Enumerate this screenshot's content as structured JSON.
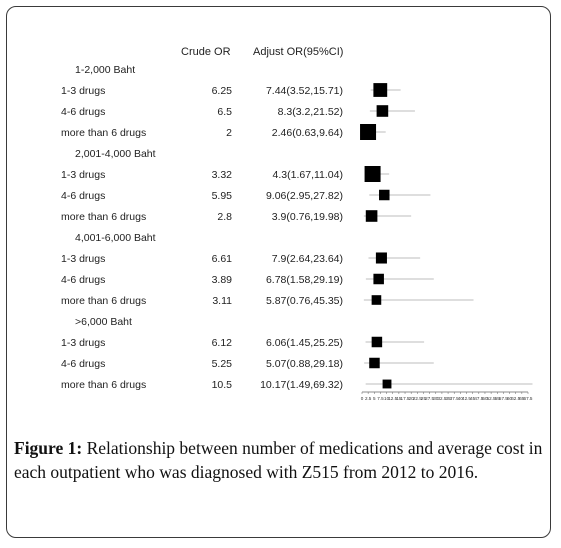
{
  "chart_data": {
    "type": "forest",
    "columns": {
      "crude": "Crude OR",
      "adjusted": "Adjust OR(95%CI)"
    },
    "groups": [
      {
        "label": "1-2,000 Baht",
        "rows": [
          {
            "label": "1-3 drugs",
            "crude": "6.25",
            "adjusted": "7.44(3.52,15.71)",
            "or": 7.44,
            "lo": 3.52,
            "hi": 15.71,
            "weight": 0.8
          },
          {
            "label": "4-6 drugs",
            "crude": "6.5",
            "adjusted": "8.3(3.2,21.52)",
            "or": 8.3,
            "lo": 3.2,
            "hi": 21.52,
            "weight": 0.6
          },
          {
            "label": "more than 6 drugs",
            "crude": "2",
            "adjusted": "2.46(0.63,9.64)",
            "or": 2.46,
            "lo": 0.63,
            "hi": 9.64,
            "weight": 1.0
          }
        ]
      },
      {
        "label": "2,001-4,000 Baht",
        "rows": [
          {
            "label": "1-3 drugs",
            "crude": "3.32",
            "adjusted": "4.3(1.67,11.04)",
            "or": 4.3,
            "lo": 1.67,
            "hi": 11.04,
            "weight": 1.0
          },
          {
            "label": "4-6 drugs",
            "crude": "5.95",
            "adjusted": "9.06(2.95,27.82)",
            "or": 9.06,
            "lo": 2.95,
            "hi": 27.82,
            "weight": 0.5
          },
          {
            "label": "more than 6 drugs",
            "crude": "2.8",
            "adjusted": "3.9(0.76,19.98)",
            "or": 3.9,
            "lo": 0.76,
            "hi": 19.98,
            "weight": 0.6
          }
        ]
      },
      {
        "label": "4,001-6,000 Baht",
        "rows": [
          {
            "label": "1-3 drugs",
            "crude": "6.61",
            "adjusted": "7.9(2.64,23.64)",
            "or": 7.9,
            "lo": 2.64,
            "hi": 23.64,
            "weight": 0.55
          },
          {
            "label": "4-6 drugs",
            "crude": "3.89",
            "adjusted": "6.78(1.58,29.19)",
            "or": 6.78,
            "lo": 1.58,
            "hi": 29.19,
            "weight": 0.5
          },
          {
            "label": "more than 6 drugs",
            "crude": "3.11",
            "adjusted": "5.87(0.76,45.35)",
            "or": 5.87,
            "lo": 0.76,
            "hi": 45.35,
            "weight": 0.42
          }
        ]
      },
      {
        "label": ">6,000 Baht",
        "rows": [
          {
            "label": "1-3 drugs",
            "crude": "6.12",
            "adjusted": "6.06(1.45,25.25)",
            "or": 6.06,
            "lo": 1.45,
            "hi": 25.25,
            "weight": 0.5
          },
          {
            "label": "4-6 drugs",
            "crude": "5.25",
            "adjusted": "5.07(0.88,29.18)",
            "or": 5.07,
            "lo": 0.88,
            "hi": 29.18,
            "weight": 0.5
          },
          {
            "label": "more than 6 drugs",
            "crude": "10.5",
            "adjusted": "10.17(1.49,69.32)",
            "or": 10.17,
            "lo": 1.49,
            "hi": 69.32,
            "weight": 0.35
          }
        ]
      }
    ],
    "x_ticks": [
      "0",
      "2.5",
      "5",
      "7.5",
      "10",
      "12.5",
      "15",
      "17.5",
      "20",
      "22.5",
      "25",
      "27.5",
      "30",
      "32.5",
      "35",
      "37.5",
      "40",
      "42.5",
      "45",
      "47.5",
      "50",
      "52.5",
      "55",
      "57.5",
      "60",
      "62.5",
      "65",
      "67.5"
    ],
    "xlim": [
      0,
      67.5
    ]
  },
  "caption": {
    "label": "Figure 1:",
    "text": " Relationship between number of medications and average cost in each outpatient who was diagnosed with Z515 from 2012 to 2016."
  }
}
